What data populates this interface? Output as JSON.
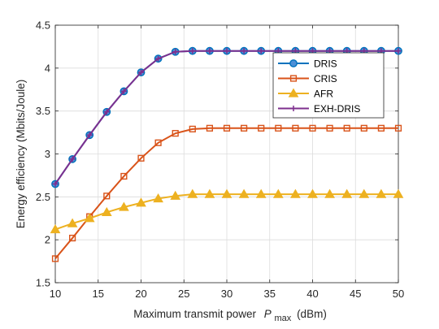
{
  "chart_data": {
    "type": "line",
    "xlabel_main": "Maximum transmit power",
    "xlabel_var": "P",
    "xlabel_sub": "max",
    "xlabel_unit": "(dBm)",
    "ylabel": "Energy efficiency (Mbits/Joule)",
    "xlim": [
      10,
      50
    ],
    "ylim": [
      1.5,
      4.5
    ],
    "xticks": [
      10,
      15,
      20,
      25,
      30,
      35,
      40,
      45,
      50
    ],
    "yticks": [
      1.5,
      2,
      2.5,
      3,
      3.5,
      4,
      4.5
    ],
    "ytick_labels": [
      "1.5",
      "2",
      "2.5",
      "3",
      "3.5",
      "4",
      "4.5"
    ],
    "grid": true,
    "legend_position": "top-right",
    "x": [
      10,
      12,
      14,
      16,
      18,
      20,
      22,
      24,
      26,
      28,
      30,
      32,
      34,
      36,
      38,
      40,
      42,
      44,
      46,
      48,
      50
    ],
    "series": [
      {
        "name": "DRIS",
        "color": "#0072BD",
        "marker": "circle",
        "values": [
          2.65,
          2.94,
          3.22,
          3.49,
          3.73,
          3.95,
          4.11,
          4.19,
          4.2,
          4.2,
          4.2,
          4.2,
          4.2,
          4.2,
          4.2,
          4.2,
          4.2,
          4.2,
          4.2,
          4.2,
          4.2
        ]
      },
      {
        "name": "CRIS",
        "color": "#D95319",
        "marker": "square",
        "values": [
          1.78,
          2.02,
          2.27,
          2.51,
          2.74,
          2.95,
          3.13,
          3.24,
          3.29,
          3.3,
          3.3,
          3.3,
          3.3,
          3.3,
          3.3,
          3.3,
          3.3,
          3.3,
          3.3,
          3.3,
          3.3
        ]
      },
      {
        "name": "AFR",
        "color": "#EDB120",
        "marker": "triangle",
        "values": [
          2.12,
          2.19,
          2.25,
          2.32,
          2.38,
          2.43,
          2.48,
          2.51,
          2.53,
          2.53,
          2.53,
          2.53,
          2.53,
          2.53,
          2.53,
          2.53,
          2.53,
          2.53,
          2.53,
          2.53,
          2.53
        ]
      },
      {
        "name": "EXH-DRIS",
        "color": "#7E2F8E",
        "marker": "plus",
        "values": [
          2.65,
          2.94,
          3.22,
          3.49,
          3.73,
          3.95,
          4.11,
          4.19,
          4.2,
          4.2,
          4.2,
          4.2,
          4.2,
          4.2,
          4.2,
          4.2,
          4.2,
          4.2,
          4.2,
          4.2,
          4.2
        ]
      }
    ]
  }
}
